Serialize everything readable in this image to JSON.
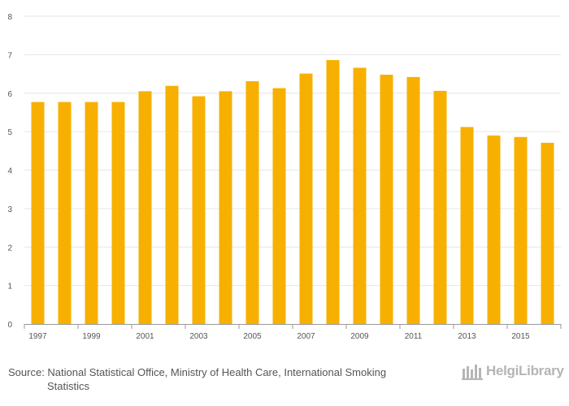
{
  "chart_data": {
    "type": "bar",
    "title": "",
    "xlabel": "",
    "ylabel": "",
    "x": [
      1997,
      1998,
      1999,
      2000,
      2001,
      2002,
      2003,
      2004,
      2005,
      2006,
      2007,
      2008,
      2009,
      2010,
      2011,
      2012,
      2013,
      2014,
      2015,
      2016
    ],
    "x_tick_labels": [
      "1997",
      "1999",
      "2001",
      "2003",
      "2005",
      "2007",
      "2009",
      "2011",
      "2013",
      "2015"
    ],
    "values": [
      5.77,
      5.77,
      5.77,
      5.77,
      6.05,
      6.19,
      5.92,
      6.05,
      6.31,
      6.13,
      6.51,
      6.86,
      6.66,
      6.48,
      6.42,
      6.06,
      5.12,
      4.9,
      4.86,
      4.71
    ],
    "ylim": [
      0,
      8
    ],
    "y_ticks": [
      0,
      1,
      2,
      3,
      4,
      5,
      6,
      7,
      8
    ],
    "grid": true,
    "legend": "none",
    "bar_color": "#f7b000"
  },
  "footer": {
    "source_line_1": "Source: National Statistical Office, Ministry of Health Care, International Smoking",
    "source_line_2": "Statistics",
    "brand": "HelgiLibrary"
  },
  "colors": {
    "bar": "#f7b000",
    "grid": "#e6e6e6",
    "axis": "#999999",
    "text": "#555555",
    "brand": "#b5b5b5"
  }
}
